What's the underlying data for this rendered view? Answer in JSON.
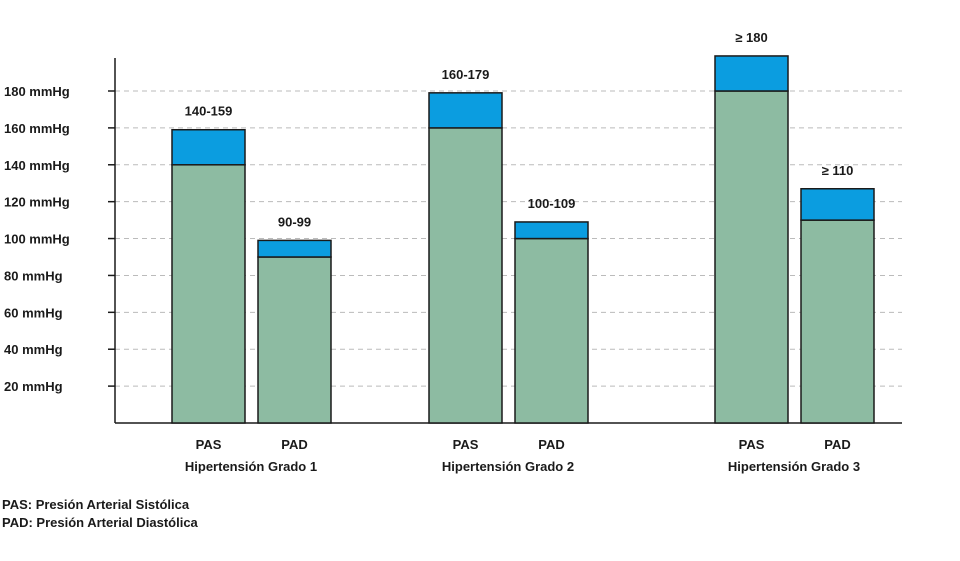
{
  "chart_data": {
    "type": "bar",
    "ylim": [
      0,
      200
    ],
    "yticks": [
      20,
      40,
      60,
      80,
      100,
      120,
      140,
      160,
      180
    ],
    "ytick_labels": [
      "20 mmHg",
      "40 mmHg",
      "60 mmHg",
      "80 mmHg",
      "100 mmHg",
      "120 mmHg",
      "140 mmHg",
      "160 mmHg",
      "180 mmHg"
    ],
    "grid": true,
    "colors": {
      "base": "#8dbba2",
      "range": "#0b9de0",
      "outline": "#1a1a1a",
      "grid": "#bbbbbb"
    },
    "groups": [
      {
        "label": "Hipertensión Grado 1",
        "bars": [
          {
            "category": "PAS",
            "low": 140,
            "high": 159,
            "label": "140-159"
          },
          {
            "category": "PAD",
            "low": 90,
            "high": 99,
            "label": "90-99"
          }
        ]
      },
      {
        "label": "Hipertensión Grado 2",
        "bars": [
          {
            "category": "PAS",
            "low": 160,
            "high": 179,
            "label": "160-179"
          },
          {
            "category": "PAD",
            "low": 100,
            "high": 109,
            "label": "100-109"
          }
        ]
      },
      {
        "label": "Hipertensión Grado 3",
        "bars": [
          {
            "category": "PAS",
            "low": 180,
            "high": 199,
            "label": "≥ 180"
          },
          {
            "category": "PAD",
            "low": 110,
            "high": 127,
            "label": "≥ 110"
          }
        ]
      }
    ]
  },
  "footnotes": {
    "pas": "PAS: Presión Arterial Sistólica",
    "pad": "PAD: Presión Arterial Diastólica"
  }
}
